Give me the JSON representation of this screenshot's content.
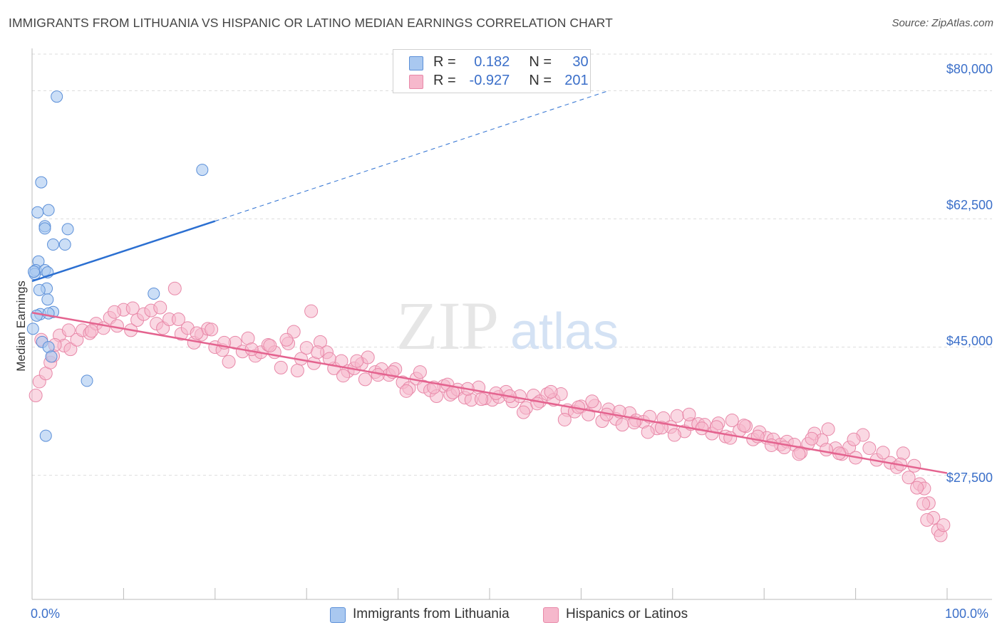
{
  "header": {
    "title": "IMMIGRANTS FROM LITHUANIA VS HISPANIC OR LATINO MEDIAN EARNINGS CORRELATION CHART",
    "source": "Source: ZipAtlas.com"
  },
  "watermark": {
    "zip": "ZIP",
    "atlas": "atlas"
  },
  "legend": {
    "rows": [
      {
        "r_label": "R =",
        "r_value": "0.182",
        "n_label": "N =",
        "n_value": "30",
        "color": "#a9c8f0"
      },
      {
        "r_label": "R =",
        "r_value": "-0.927",
        "n_label": "N =",
        "n_value": "201",
        "color": "#f6b8cc"
      }
    ]
  },
  "bottom_legend": {
    "series_a": "Immigrants from Lithuania",
    "series_b": "Hispanics or Latinos"
  },
  "colors": {
    "blue_fill": "#a9c8f0",
    "blue_stroke": "#5b8fd8",
    "blue_line": "#2b6fd1",
    "pink_fill": "#f6b8cc",
    "pink_stroke": "#e888a8",
    "pink_line": "#e4638f",
    "axis_label": "#3b6fc9",
    "grid": "#dddddd"
  },
  "chart_data": {
    "type": "scatter",
    "title": "IMMIGRANTS FROM LITHUANIA VS HISPANIC OR LATINO MEDIAN EARNINGS CORRELATION CHART",
    "xlabel": "",
    "ylabel": "Median Earnings",
    "xlim": [
      0,
      100
    ],
    "ylim": [
      12500,
      85000
    ],
    "x_tick_labels": [
      "0.0%",
      "100.0%"
    ],
    "y_ticks": [
      27500,
      45000,
      62500,
      80000
    ],
    "y_tick_labels": [
      "$27,500",
      "$45,000",
      "$62,500",
      "$80,000"
    ],
    "grid": true,
    "legend_position": "top-center",
    "series": [
      {
        "name": "Immigrants from Lithuania",
        "R": 0.182,
        "N": 30,
        "trend": {
          "x": [
            0,
            20
          ],
          "y": [
            54000,
            62200
          ],
          "dashed_to": {
            "x": 63,
            "y": 80000
          }
        },
        "points": [
          [
            2.7,
            79200
          ],
          [
            18.6,
            69200
          ],
          [
            1.0,
            67500
          ],
          [
            1.8,
            63700
          ],
          [
            0.6,
            63400
          ],
          [
            1.4,
            61500
          ],
          [
            3.9,
            61100
          ],
          [
            1.4,
            61200
          ],
          [
            2.3,
            59000
          ],
          [
            3.6,
            59000
          ],
          [
            0.7,
            56700
          ],
          [
            0.4,
            55500
          ],
          [
            1.4,
            55500
          ],
          [
            1.7,
            55200
          ],
          [
            0.3,
            55000
          ],
          [
            1.6,
            53000
          ],
          [
            0.8,
            52800
          ],
          [
            13.3,
            52300
          ],
          [
            1.7,
            51500
          ],
          [
            2.3,
            49800
          ],
          [
            0.9,
            49500
          ],
          [
            1.8,
            49600
          ],
          [
            0.1,
            47500
          ],
          [
            1.1,
            45700
          ],
          [
            1.8,
            45000
          ],
          [
            2.1,
            43700
          ],
          [
            6.0,
            40400
          ],
          [
            1.5,
            32900
          ],
          [
            0.2,
            55300
          ],
          [
            0.5,
            49300
          ]
        ]
      },
      {
        "name": "Hispanics or Latinos",
        "R": -0.927,
        "N": 201,
        "trend": {
          "x": [
            0,
            100
          ],
          "y": [
            49700,
            27800
          ]
        },
        "points": [
          [
            0.4,
            38400
          ],
          [
            0.8,
            40300
          ],
          [
            1.5,
            41400
          ],
          [
            2.0,
            42900
          ],
          [
            2.3,
            43800
          ],
          [
            3.0,
            46600
          ],
          [
            3.5,
            45200
          ],
          [
            4.2,
            44700
          ],
          [
            4.9,
            46000
          ],
          [
            5.5,
            47300
          ],
          [
            6.3,
            46900
          ],
          [
            7.0,
            48200
          ],
          [
            7.8,
            47600
          ],
          [
            8.5,
            49000
          ],
          [
            9.3,
            47900
          ],
          [
            10.0,
            50100
          ],
          [
            10.8,
            47300
          ],
          [
            11.5,
            48700
          ],
          [
            12.2,
            49500
          ],
          [
            13.0,
            50000
          ],
          [
            13.6,
            48200
          ],
          [
            14.3,
            47600
          ],
          [
            15.0,
            48800
          ],
          [
            15.6,
            53000
          ],
          [
            16.3,
            46800
          ],
          [
            17.0,
            47600
          ],
          [
            17.7,
            45600
          ],
          [
            18.5,
            46700
          ],
          [
            19.2,
            47500
          ],
          [
            20.0,
            45000
          ],
          [
            20.8,
            44600
          ],
          [
            21.5,
            43000
          ],
          [
            22.2,
            45600
          ],
          [
            23.0,
            44400
          ],
          [
            23.6,
            46200
          ],
          [
            24.4,
            43800
          ],
          [
            25.0,
            44300
          ],
          [
            25.8,
            45300
          ],
          [
            26.5,
            44300
          ],
          [
            27.2,
            42200
          ],
          [
            28.0,
            45500
          ],
          [
            28.6,
            47100
          ],
          [
            29.4,
            43400
          ],
          [
            30.0,
            44900
          ],
          [
            30.8,
            42800
          ],
          [
            31.5,
            45700
          ],
          [
            32.2,
            44300
          ],
          [
            33.0,
            42100
          ],
          [
            33.8,
            43100
          ],
          [
            34.5,
            41700
          ],
          [
            35.2,
            42100
          ],
          [
            36.0,
            42700
          ],
          [
            36.7,
            43600
          ],
          [
            37.5,
            41600
          ],
          [
            38.2,
            42000
          ],
          [
            39.0,
            41200
          ],
          [
            39.7,
            42000
          ],
          [
            40.5,
            40200
          ],
          [
            41.2,
            39400
          ],
          [
            42.0,
            40700
          ],
          [
            42.8,
            39600
          ],
          [
            43.5,
            39100
          ],
          [
            44.2,
            38300
          ],
          [
            45.0,
            39700
          ],
          [
            45.7,
            38500
          ],
          [
            46.5,
            39200
          ],
          [
            47.3,
            38100
          ],
          [
            48.0,
            37800
          ],
          [
            48.8,
            39500
          ],
          [
            49.5,
            38000
          ],
          [
            50.3,
            37800
          ],
          [
            51.0,
            38200
          ],
          [
            51.8,
            38900
          ],
          [
            52.5,
            37600
          ],
          [
            53.3,
            38300
          ],
          [
            54.0,
            36700
          ],
          [
            54.8,
            38400
          ],
          [
            55.5,
            37600
          ],
          [
            56.3,
            38600
          ],
          [
            57.0,
            37800
          ],
          [
            57.8,
            38600
          ],
          [
            58.5,
            36400
          ],
          [
            59.3,
            36200
          ],
          [
            60.0,
            36900
          ],
          [
            60.8,
            35800
          ],
          [
            61.5,
            37000
          ],
          [
            62.3,
            34900
          ],
          [
            63.0,
            36500
          ],
          [
            63.8,
            35200
          ],
          [
            64.5,
            34400
          ],
          [
            65.3,
            36000
          ],
          [
            66.0,
            35000
          ],
          [
            66.8,
            34800
          ],
          [
            67.5,
            35500
          ],
          [
            68.3,
            33900
          ],
          [
            69.0,
            35300
          ],
          [
            69.8,
            34100
          ],
          [
            70.5,
            35600
          ],
          [
            71.3,
            33500
          ],
          [
            72.0,
            34500
          ],
          [
            72.8,
            34500
          ],
          [
            73.5,
            34400
          ],
          [
            74.3,
            33200
          ],
          [
            75.0,
            34600
          ],
          [
            75.8,
            32800
          ],
          [
            76.5,
            35000
          ],
          [
            77.3,
            33600
          ],
          [
            78.0,
            34200
          ],
          [
            78.8,
            32400
          ],
          [
            79.5,
            33400
          ],
          [
            80.3,
            32600
          ],
          [
            81.0,
            32400
          ],
          [
            81.8,
            31700
          ],
          [
            82.5,
            32100
          ],
          [
            83.3,
            31700
          ],
          [
            84.0,
            30600
          ],
          [
            84.8,
            31800
          ],
          [
            85.5,
            33200
          ],
          [
            86.3,
            32300
          ],
          [
            87.0,
            33800
          ],
          [
            87.8,
            31200
          ],
          [
            88.5,
            30400
          ],
          [
            89.3,
            31300
          ],
          [
            90.0,
            29900
          ],
          [
            90.8,
            33000
          ],
          [
            91.5,
            31200
          ],
          [
            92.3,
            29600
          ],
          [
            93.0,
            30600
          ],
          [
            93.8,
            29200
          ],
          [
            94.5,
            28600
          ],
          [
            95.2,
            30500
          ],
          [
            95.8,
            27200
          ],
          [
            96.4,
            28800
          ],
          [
            97.0,
            26300
          ],
          [
            97.5,
            25700
          ],
          [
            98.0,
            23700
          ],
          [
            98.5,
            21700
          ],
          [
            99.0,
            20000
          ],
          [
            99.3,
            19300
          ],
          [
            99.6,
            20700
          ],
          [
            96.7,
            25800
          ],
          [
            97.4,
            23600
          ],
          [
            97.8,
            21400
          ],
          [
            94.9,
            29000
          ],
          [
            1.0,
            46000
          ],
          [
            2.5,
            45300
          ],
          [
            4.0,
            47300
          ],
          [
            6.5,
            47200
          ],
          [
            9.0,
            49800
          ],
          [
            11.0,
            50300
          ],
          [
            14.0,
            50400
          ],
          [
            16.0,
            48800
          ],
          [
            18.0,
            46900
          ],
          [
            19.6,
            47400
          ],
          [
            21.0,
            45600
          ],
          [
            24.0,
            44700
          ],
          [
            26.0,
            45200
          ],
          [
            27.8,
            46000
          ],
          [
            29.0,
            41800
          ],
          [
            30.5,
            49900
          ],
          [
            31.2,
            44300
          ],
          [
            32.5,
            43400
          ],
          [
            34.0,
            41100
          ],
          [
            35.5,
            43100
          ],
          [
            36.4,
            40600
          ],
          [
            37.8,
            41200
          ],
          [
            39.4,
            41600
          ],
          [
            40.9,
            39000
          ],
          [
            42.4,
            41600
          ],
          [
            43.9,
            39500
          ],
          [
            45.4,
            39900
          ],
          [
            46.0,
            38800
          ],
          [
            47.6,
            39300
          ],
          [
            49.1,
            37900
          ],
          [
            50.7,
            38700
          ],
          [
            52.2,
            38300
          ],
          [
            53.7,
            36100
          ],
          [
            55.2,
            37300
          ],
          [
            56.7,
            38900
          ],
          [
            58.2,
            35100
          ],
          [
            59.7,
            36800
          ],
          [
            61.2,
            37600
          ],
          [
            62.8,
            35800
          ],
          [
            64.2,
            36200
          ],
          [
            65.8,
            34700
          ],
          [
            67.3,
            33400
          ],
          [
            68.8,
            34000
          ],
          [
            70.2,
            33000
          ],
          [
            71.8,
            35800
          ],
          [
            73.2,
            33900
          ],
          [
            74.8,
            34100
          ],
          [
            76.3,
            32600
          ],
          [
            77.8,
            34300
          ],
          [
            79.3,
            32800
          ],
          [
            80.8,
            31600
          ],
          [
            82.2,
            31300
          ],
          [
            83.8,
            30400
          ],
          [
            85.2,
            32500
          ],
          [
            86.8,
            31000
          ],
          [
            88.2,
            30500
          ],
          [
            89.8,
            32400
          ]
        ]
      }
    ]
  }
}
